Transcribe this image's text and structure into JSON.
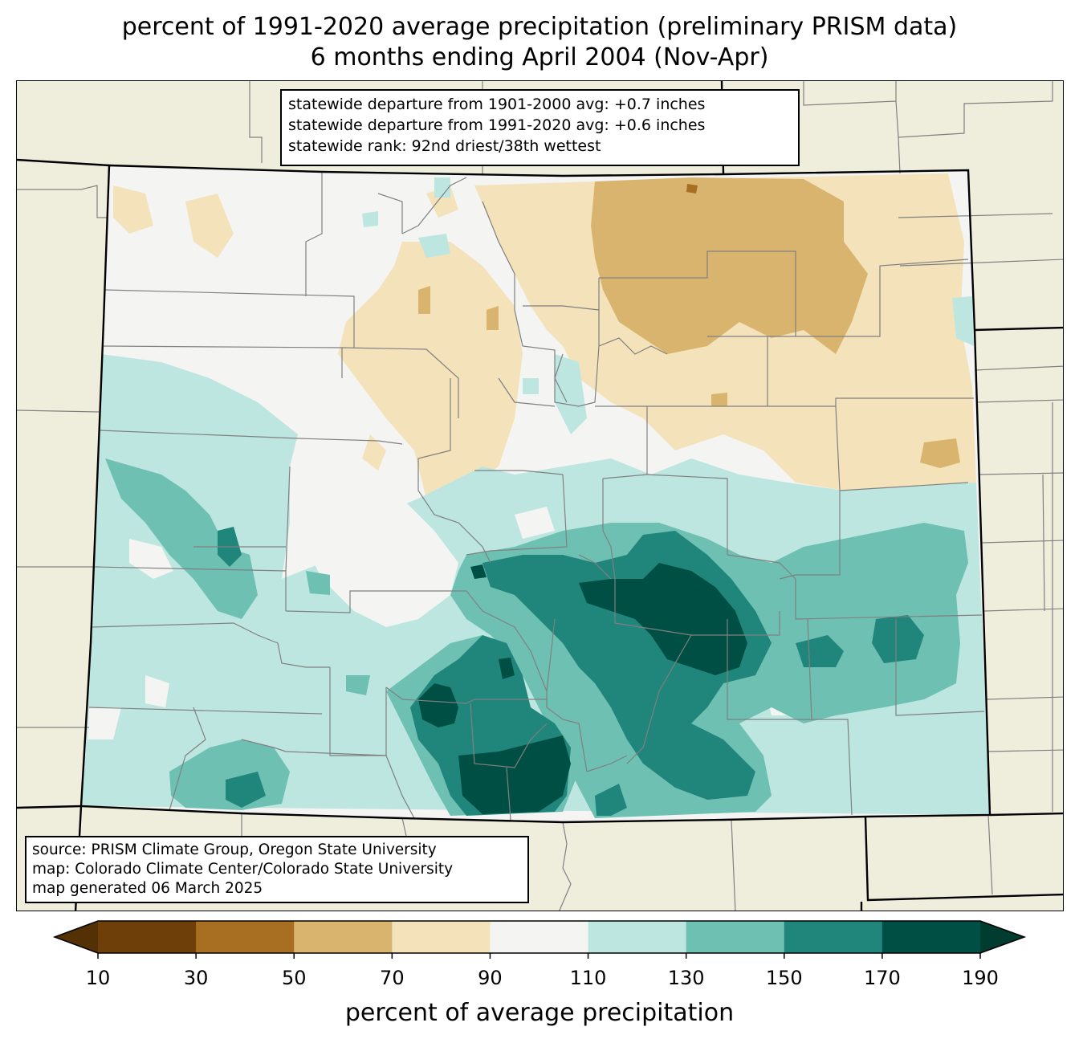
{
  "title_line1": "percent of 1991-2020 average precipitation (preliminary PRISM data)",
  "title_line2": "6 months ending April 2004 (Nov-Apr)",
  "stats": [
    "statewide departure from 1901-2000 avg: +0.7 inches",
    "statewide departure from 1991-2020 avg: +0.6 inches",
    "statewide rank: 92nd driest/38th wettest"
  ],
  "source": [
    "source: PRISM Climate Group, Oregon State University",
    "map: Colorado Climate Center/Colorado State University",
    "map generated 06 March 2025"
  ],
  "colorbar": {
    "label": "percent of average precipitation",
    "ticks": [
      "10",
      "30",
      "50",
      "70",
      "90",
      "110",
      "130",
      "150",
      "170",
      "190"
    ],
    "under_color": "#543005",
    "over_color": "#003c30",
    "colors": [
      "#6f3f0a",
      "#a86e22",
      "#d9b46e",
      "#f4e2ba",
      "#f4f4f2",
      "#bde6e0",
      "#6ec0b3",
      "#20857b",
      "#004f45"
    ]
  },
  "map": {
    "background_color": "#efeedd",
    "boundary_color": "#808080",
    "state_border_color": "#000000"
  }
}
